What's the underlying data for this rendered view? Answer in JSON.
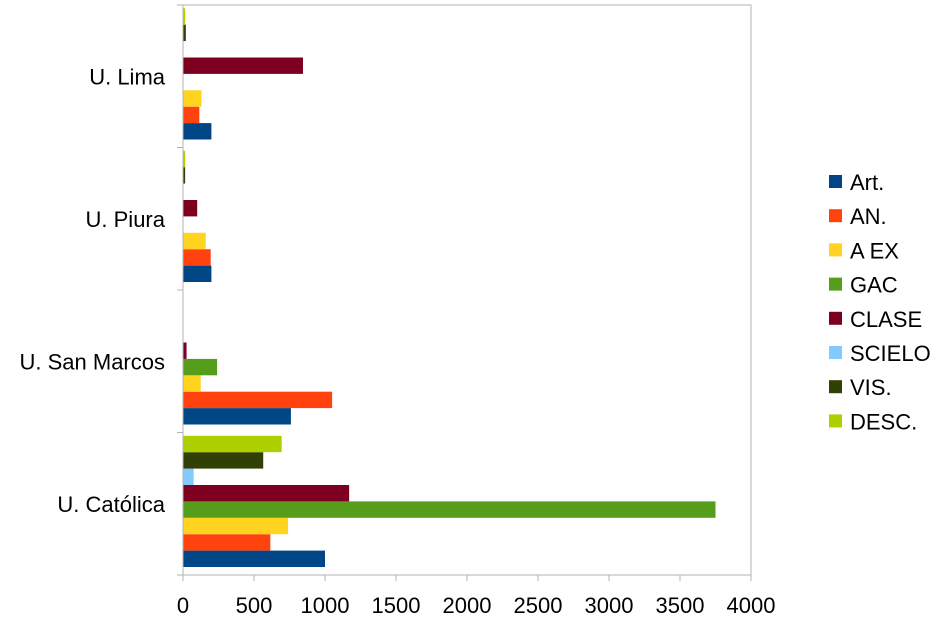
{
  "chart_data": {
    "type": "bar",
    "orientation": "horizontal",
    "categories": [
      "U. Católica",
      "U. San Marcos",
      "U. Piura",
      "U. Lima"
    ],
    "series": [
      {
        "name": "Art.",
        "color": "#004586",
        "values": [
          1000,
          760,
          200,
          200
        ]
      },
      {
        "name": "AN.",
        "color": "#ff420e",
        "values": [
          615,
          1050,
          195,
          115
        ]
      },
      {
        "name": "A EX",
        "color": "#ffd320",
        "values": [
          740,
          125,
          160,
          130
        ]
      },
      {
        "name": "GAC",
        "color": "#579d1c",
        "values": [
          3750,
          240,
          0,
          0
        ]
      },
      {
        "name": "CLASE",
        "color": "#7e0021",
        "values": [
          1170,
          25,
          100,
          845
        ]
      },
      {
        "name": "SCIELO",
        "color": "#83caff",
        "values": [
          75,
          0,
          0,
          0
        ]
      },
      {
        "name": "VIS.",
        "color": "#314004",
        "values": [
          565,
          0,
          15,
          20
        ]
      },
      {
        "name": "DESC.",
        "color": "#aecf00",
        "values": [
          695,
          0,
          15,
          15
        ]
      }
    ],
    "xticks": [
      0,
      500,
      1000,
      1500,
      2000,
      2500,
      3000,
      3500,
      4000
    ],
    "xlim": [
      0,
      4000
    ],
    "title": "",
    "xlabel": "",
    "ylabel": "",
    "grid": false,
    "legend_position": "right"
  }
}
